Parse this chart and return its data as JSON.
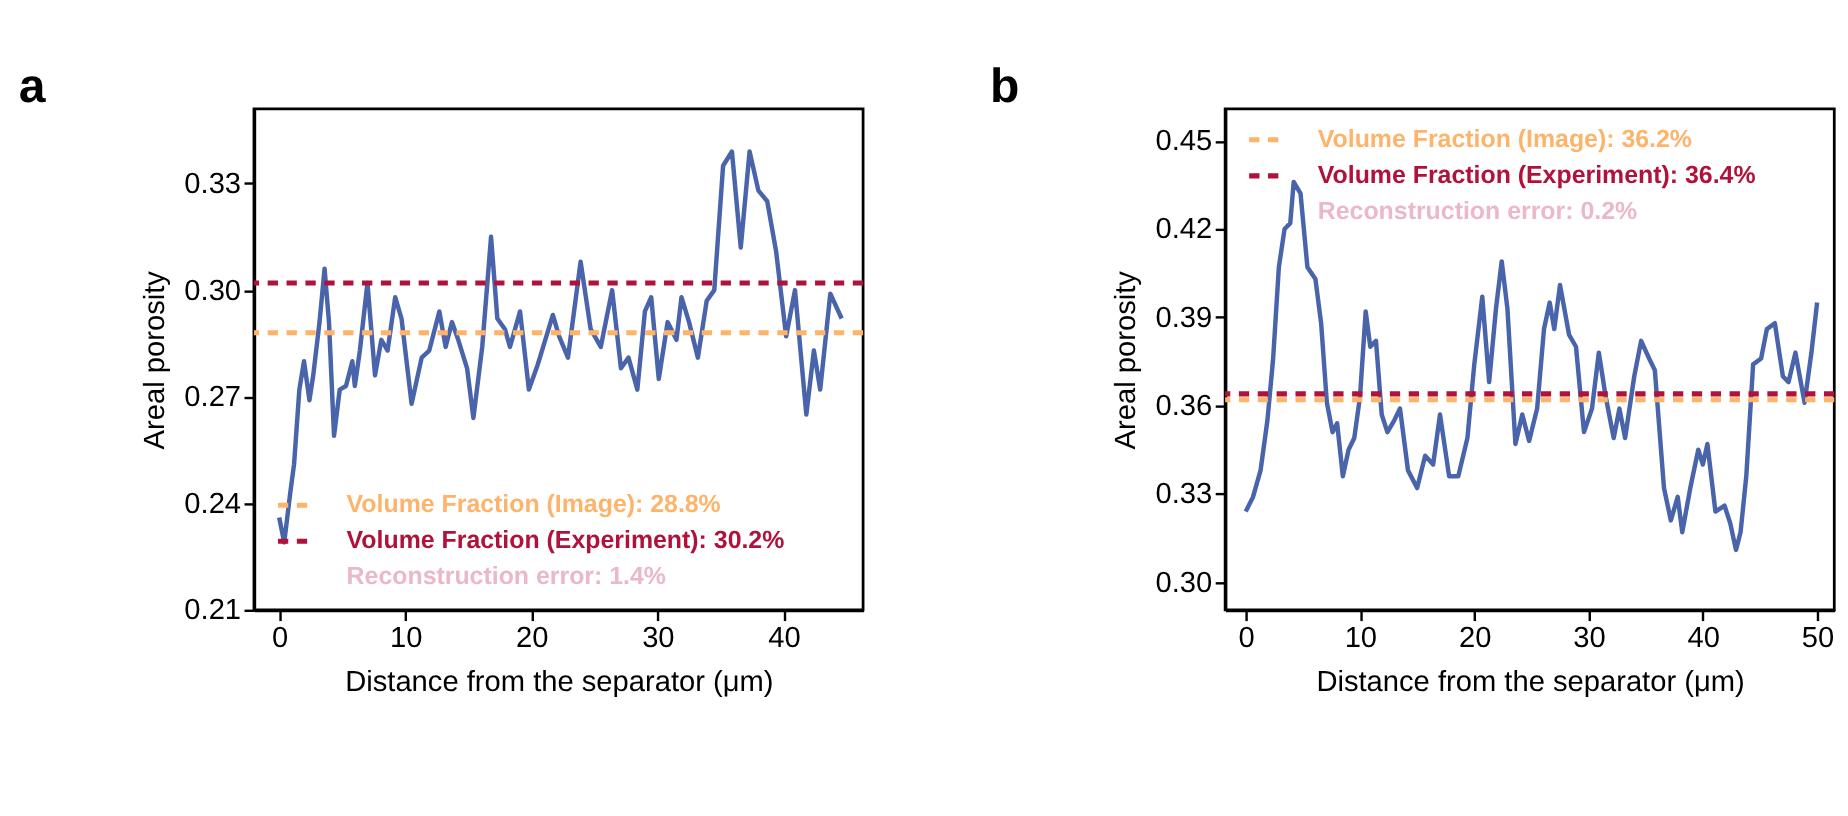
{
  "chart_data": [
    {
      "type": "line",
      "title": "a",
      "xlabel": "Distance from the separator (μm)",
      "ylabel": "Areal porosity",
      "x": [
        0,
        0.4,
        0.88,
        1.18,
        1.6,
        1.97,
        2.4,
        2.7,
        3.2,
        3.6,
        3.95,
        4.35,
        4.8,
        5.3,
        5.8,
        6.0,
        6.4,
        7.0,
        7.6,
        8.1,
        8.6,
        9.2,
        9.7,
        10.5,
        11.3,
        11.9,
        12.7,
        13.2,
        13.7,
        14.2,
        14.9,
        15.4,
        16.1,
        16.8,
        17.3,
        17.9,
        18.3,
        19.1,
        19.8,
        20.5,
        21.1,
        21.7,
        22.2,
        22.9,
        23.9,
        24.7,
        25.5,
        26.4,
        27.1,
        27.7,
        28.4,
        29.0,
        29.5,
        30.1,
        30.8,
        31.5,
        31.9,
        32.5,
        33.2,
        33.9,
        34.5,
        35.2,
        35.9,
        36.6,
        37.3,
        38.0,
        38.7,
        39.4,
        40.2,
        40.9,
        41.8,
        42.4,
        42.9,
        43.7,
        44.6
      ],
      "series": [
        {
          "color": "#4a64ac",
          "values": [
            0.236,
            0.229,
            0.243,
            0.251,
            0.272,
            0.28,
            0.269,
            0.276,
            0.291,
            0.306,
            0.291,
            0.259,
            0.272,
            0.273,
            0.28,
            0.273,
            0.283,
            0.302,
            0.276,
            0.286,
            0.283,
            0.298,
            0.292,
            0.268,
            0.281,
            0.283,
            0.294,
            0.284,
            0.291,
            0.286,
            0.278,
            0.264,
            0.284,
            0.315,
            0.292,
            0.289,
            0.284,
            0.294,
            0.272,
            0.279,
            0.286,
            0.293,
            0.287,
            0.281,
            0.308,
            0.289,
            0.284,
            0.3,
            0.278,
            0.281,
            0.272,
            0.294,
            0.298,
            0.275,
            0.291,
            0.286,
            0.298,
            0.291,
            0.281,
            0.297,
            0.3,
            0.335,
            0.339,
            0.312,
            0.339,
            0.328,
            0.325,
            0.311,
            0.287,
            0.3,
            0.265,
            0.283,
            0.272,
            0.299,
            0.292
          ]
        }
      ],
      "xlim": [
        -2,
        46.3
      ],
      "ylim": [
        0.21,
        0.351
      ],
      "xticks": [
        0,
        10,
        20,
        30,
        40
      ],
      "yticks": [
        {
          "value": 0.21,
          "label": "0.21"
        },
        {
          "value": 0.24,
          "label": "0.24"
        },
        {
          "value": 0.27,
          "label": "0.27"
        },
        {
          "value": 0.3,
          "label": "0.30"
        },
        {
          "value": 0.33,
          "label": "0.33"
        }
      ],
      "ref_lines": [
        {
          "axis": "y",
          "value": 0.288,
          "label": "Volume Fraction (Image): 28.8%",
          "color": "#fdb46a",
          "line_style": "dashed"
        },
        {
          "axis": "y",
          "value": 0.302,
          "label": "Volume Fraction (Experiment): 30.2%",
          "color": "#b0123b",
          "line_style": "dashed"
        }
      ],
      "annotations": [
        "Reconstruction error: 1.4%"
      ],
      "legend": "bottom left"
    },
    {
      "type": "line",
      "title": "b",
      "xlabel": "Distance from the separator (μm)",
      "ylabel": "Areal porosity",
      "x": [
        0,
        0.64,
        1.3,
        1.9,
        2.4,
        2.9,
        3.4,
        3.9,
        4.2,
        4.8,
        5.4,
        6.1,
        6.6,
        7.1,
        7.6,
        8.0,
        8.5,
        9.0,
        9.5,
        10.0,
        10.5,
        10.9,
        11.4,
        11.9,
        12.4,
        13.0,
        13.5,
        14.2,
        15.0,
        15.7,
        16.4,
        17.0,
        17.8,
        18.6,
        19.4,
        20.0,
        20.7,
        21.3,
        21.9,
        22.4,
        22.9,
        23.6,
        24.2,
        24.8,
        25.5,
        26.1,
        26.6,
        27.0,
        27.5,
        28.3,
        28.9,
        29.6,
        30.3,
        30.9,
        31.5,
        32.2,
        32.7,
        33.2,
        34.0,
        34.6,
        35.3,
        35.8,
        36.6,
        37.2,
        37.8,
        38.2,
        38.9,
        39.6,
        40.0,
        40.4,
        41.1,
        41.9,
        42.4,
        42.9,
        43.3,
        43.8,
        44.4,
        45.1,
        45.6,
        46.3,
        47.0,
        47.5,
        48.1,
        48.9,
        49.5,
        50.0
      ],
      "series": [
        {
          "color": "#4a64ac",
          "values": [
            0.324,
            0.329,
            0.338,
            0.355,
            0.376,
            0.407,
            0.42,
            0.422,
            0.436,
            0.432,
            0.407,
            0.403,
            0.388,
            0.361,
            0.351,
            0.354,
            0.336,
            0.345,
            0.349,
            0.363,
            0.392,
            0.38,
            0.382,
            0.357,
            0.351,
            0.355,
            0.359,
            0.338,
            0.332,
            0.343,
            0.34,
            0.357,
            0.336,
            0.336,
            0.349,
            0.374,
            0.397,
            0.368,
            0.393,
            0.409,
            0.393,
            0.347,
            0.357,
            0.348,
            0.359,
            0.386,
            0.395,
            0.386,
            0.401,
            0.384,
            0.38,
            0.351,
            0.359,
            0.378,
            0.363,
            0.349,
            0.359,
            0.349,
            0.37,
            0.382,
            0.376,
            0.372,
            0.332,
            0.321,
            0.329,
            0.317,
            0.332,
            0.345,
            0.34,
            0.347,
            0.324,
            0.326,
            0.32,
            0.311,
            0.317,
            0.336,
            0.374,
            0.376,
            0.386,
            0.388,
            0.37,
            0.368,
            0.378,
            0.361,
            0.378,
            0.395
          ]
        }
      ],
      "xlim": [
        -1.8,
        51.5
      ],
      "ylim": [
        0.2906,
        0.4608
      ],
      "xticks": [
        0,
        10,
        20,
        30,
        40,
        50
      ],
      "yticks": [
        {
          "value": 0.3,
          "label": "0.30"
        },
        {
          "value": 0.33,
          "label": "0.33"
        },
        {
          "value": 0.36,
          "label": "0.36"
        },
        {
          "value": 0.39,
          "label": "0.39"
        },
        {
          "value": 0.42,
          "label": "0.42"
        },
        {
          "value": 0.45,
          "label": "0.45"
        }
      ],
      "ref_lines": [
        {
          "axis": "y",
          "value": 0.362,
          "label": "Volume Fraction (Image): 36.2%",
          "color": "#fdb46a",
          "line_style": "dashed"
        },
        {
          "axis": "y",
          "value": 0.364,
          "label": "Volume Fraction (Experiment): 36.4%",
          "color": "#b0123b",
          "line_style": "dashed"
        }
      ],
      "annotations": [
        "Reconstruction error: 0.2%"
      ],
      "legend": "top left"
    }
  ]
}
